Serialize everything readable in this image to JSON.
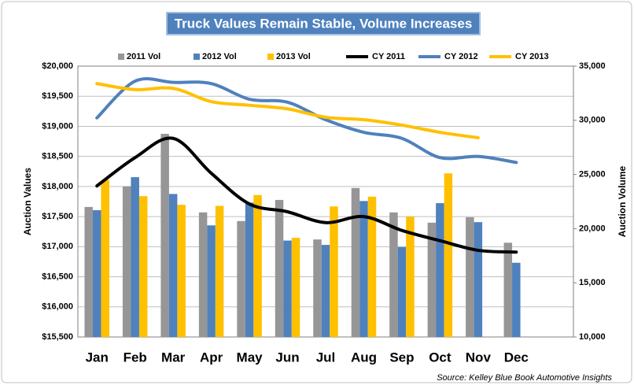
{
  "chart_data": {
    "type": "combo",
    "title": "Truck Values Remain Stable, Volume Increases",
    "y_label": "Auction Values",
    "y2_label": "Auction Volume",
    "source": "Source: Kelley Blue Book Automotive Insights",
    "categories": [
      "Jan",
      "Feb",
      "Mar",
      "Apr",
      "May",
      "Jun",
      "Jul",
      "Aug",
      "Sep",
      "Oct",
      "Nov",
      "Dec"
    ],
    "series": [
      {
        "name": "2011 Vol",
        "type": "bar",
        "axis": "y2",
        "color": "#969696",
        "values": [
          22000,
          23900,
          28750,
          21500,
          20700,
          22650,
          19000,
          23750,
          21500,
          20550,
          21050,
          18700
        ]
      },
      {
        "name": "2012 Vol",
        "type": "bar",
        "axis": "y2",
        "color": "#4f81bd",
        "values": [
          21700,
          24750,
          23200,
          20300,
          22400,
          18900,
          18500,
          22550,
          18300,
          22350,
          20600,
          16850
        ]
      },
      {
        "name": "2013 Vol",
        "type": "bar",
        "axis": "y2",
        "color": "#ffc000",
        "values": [
          24500,
          23000,
          22200,
          22100,
          23100,
          19150,
          22050,
          22950,
          21100,
          25100,
          null,
          null
        ]
      },
      {
        "name": "CY 2011",
        "type": "line",
        "color": "#000000",
        "values": [
          18010,
          18480,
          18800,
          18220,
          17710,
          17580,
          17400,
          17500,
          17270,
          17100,
          16940,
          16910
        ]
      },
      {
        "name": "CY 2012",
        "type": "line",
        "color": "#4f81bd",
        "values": [
          19140,
          19750,
          19730,
          19710,
          19450,
          19400,
          19110,
          18900,
          18800,
          18480,
          18500,
          18400
        ]
      },
      {
        "name": "CY 2013",
        "type": "line",
        "color": "#ffc000",
        "values": [
          19710,
          19610,
          19630,
          19410,
          19350,
          19290,
          19150,
          19110,
          19020,
          18900,
          18810,
          null
        ]
      }
    ],
    "ylim": [
      15500,
      20000
    ],
    "yticks": [
      {
        "value": 15500,
        "label": "$15,500"
      },
      {
        "value": 16000,
        "label": "$16,000"
      },
      {
        "value": 16500,
        "label": "$16,500"
      },
      {
        "value": 17000,
        "label": "$17,000"
      },
      {
        "value": 17500,
        "label": "$17,500"
      },
      {
        "value": 18000,
        "label": "$18,000"
      },
      {
        "value": 18500,
        "label": "$18,500"
      },
      {
        "value": 19000,
        "label": "$19,000"
      },
      {
        "value": 19500,
        "label": "$19,500"
      },
      {
        "value": 20000,
        "label": "$20,000"
      }
    ],
    "y2lim": [
      10000,
      35000
    ],
    "y2ticks": [
      {
        "value": 10000,
        "label": "10,000"
      },
      {
        "value": 15000,
        "label": "15,000"
      },
      {
        "value": 20000,
        "label": "20,000"
      },
      {
        "value": 25000,
        "label": "25,000"
      },
      {
        "value": 30000,
        "label": "30,000"
      },
      {
        "value": 35000,
        "label": "35,000"
      }
    ],
    "grid": true,
    "legend": "top"
  }
}
